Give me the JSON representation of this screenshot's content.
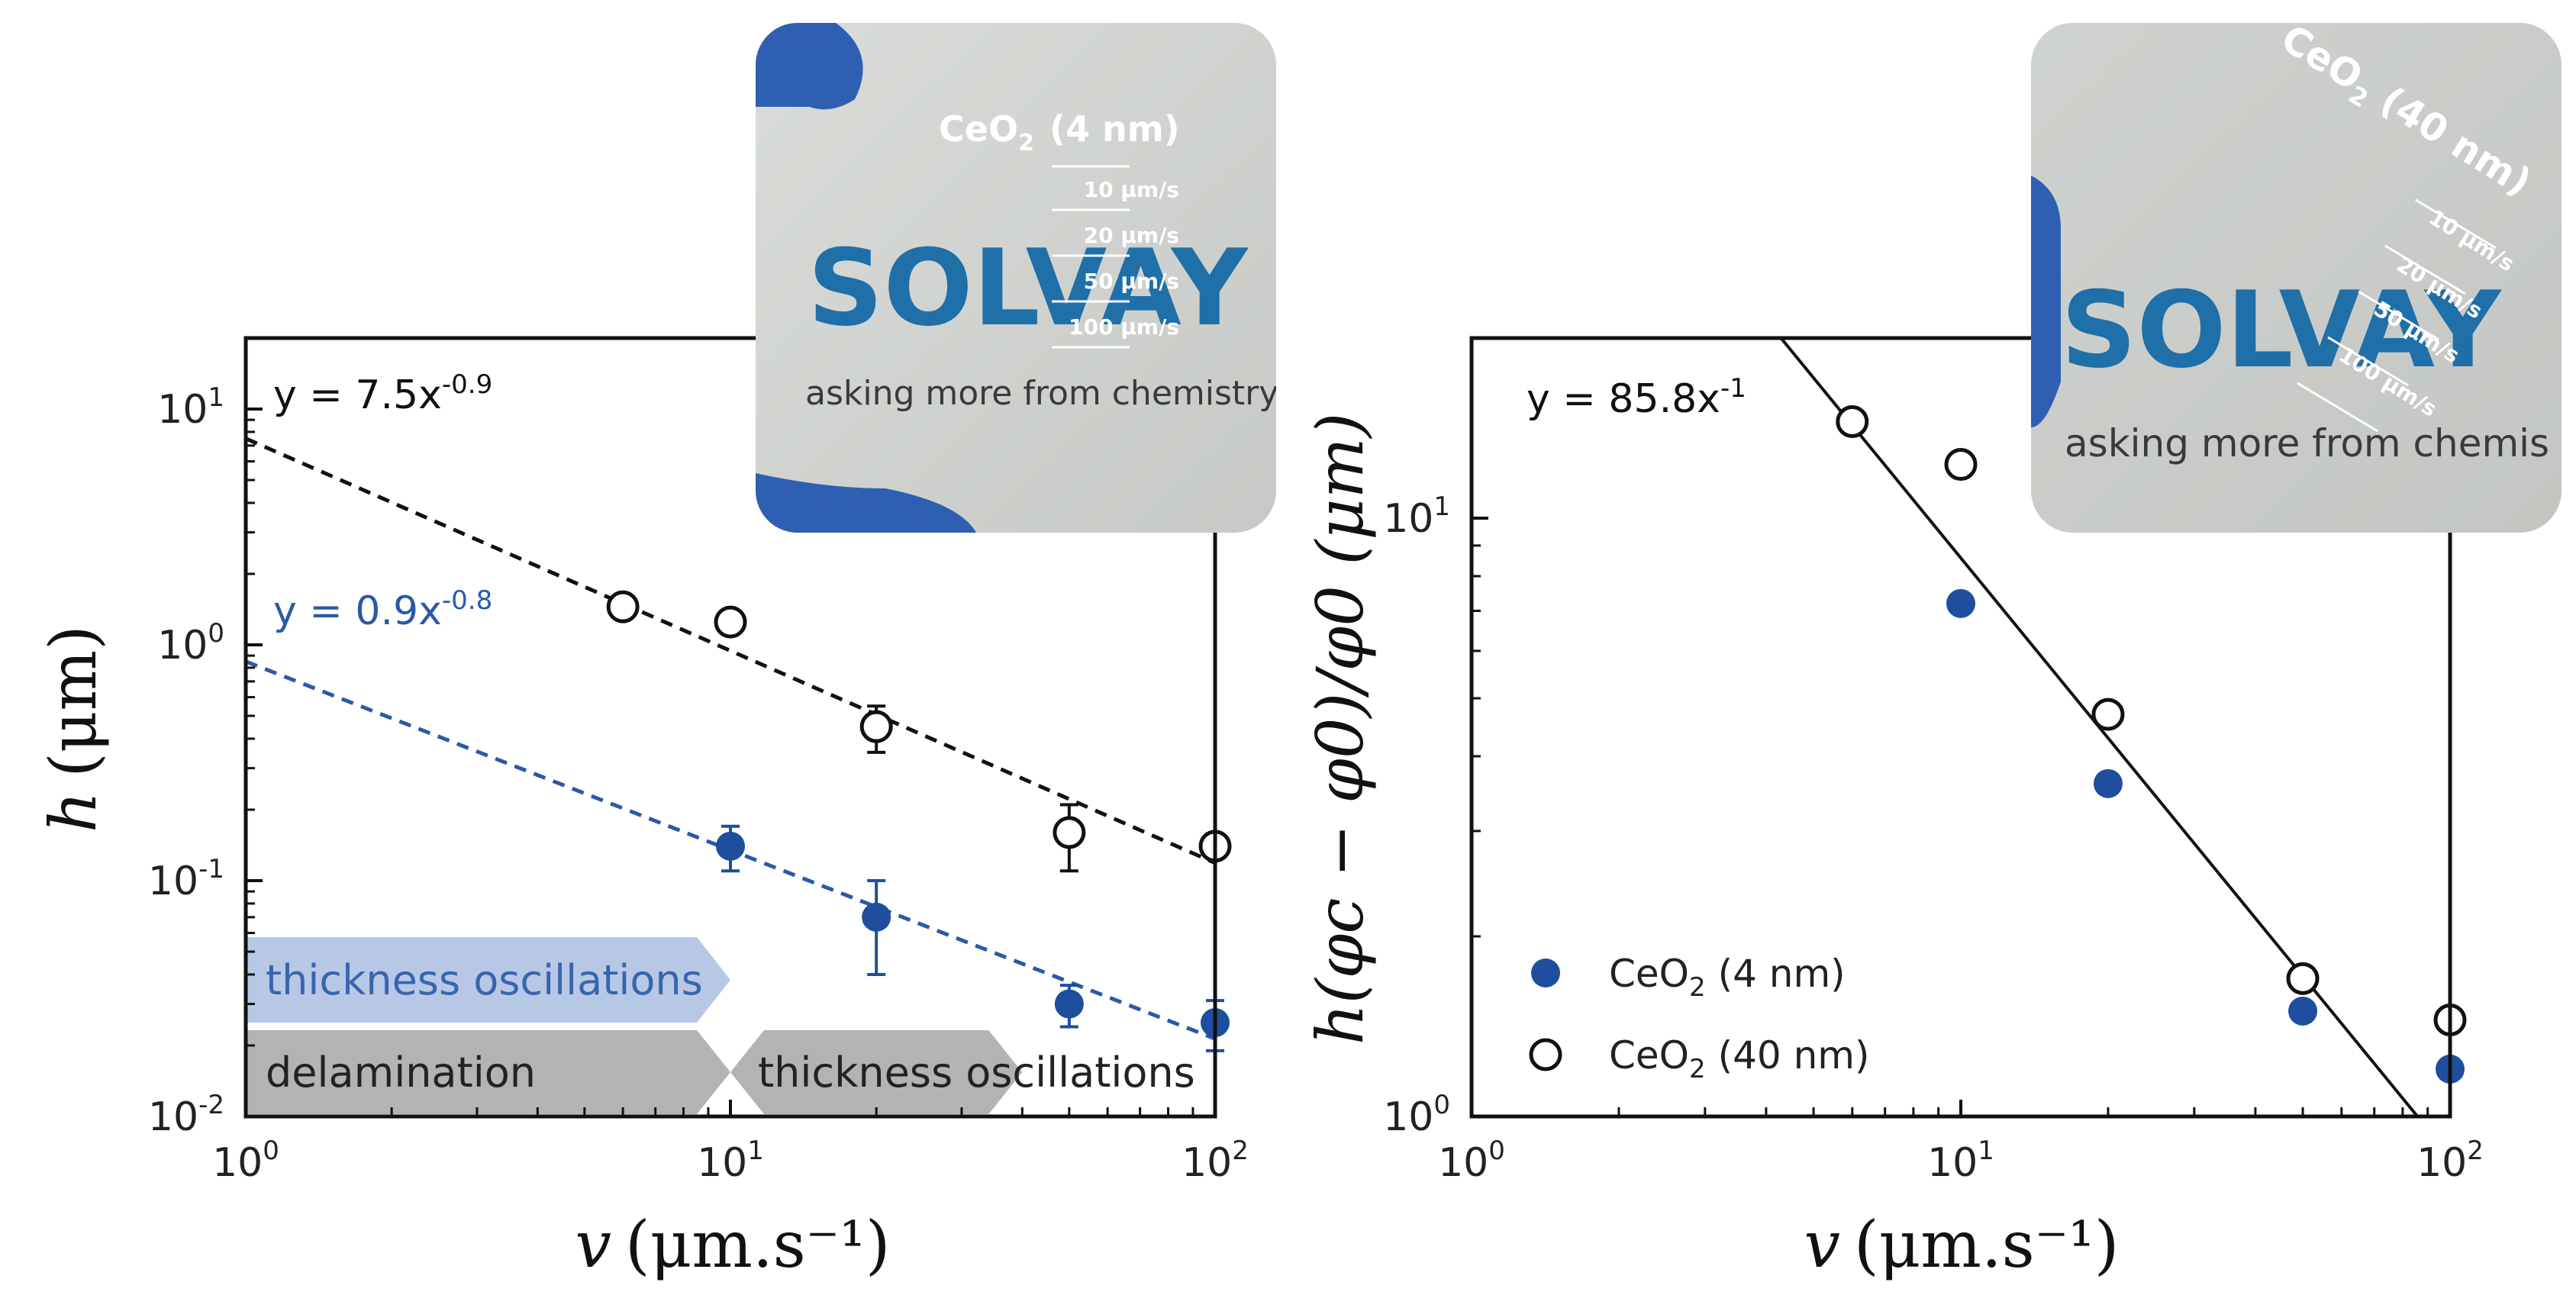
{
  "chart_data": [
    {
      "type": "scatter",
      "scale": "log-log",
      "xlabel_var": "v",
      "xlabel_unit": "(μm.s⁻¹)",
      "ylabel_var": "h",
      "ylabel_unit": "(μm)",
      "xlim": [
        1,
        100
      ],
      "ylim": [
        0.01,
        20
      ],
      "x_ticks": [
        {
          "base": "10",
          "exp": "0",
          "value": 1
        },
        {
          "base": "10",
          "exp": "1",
          "value": 10
        },
        {
          "base": "10",
          "exp": "2",
          "value": 100
        }
      ],
      "y_ticks": [
        {
          "base": "10",
          "exp": "-2",
          "value": 0.01
        },
        {
          "base": "10",
          "exp": "-1",
          "value": 0.1
        },
        {
          "base": "10",
          "exp": "0",
          "value": 1
        },
        {
          "base": "10",
          "exp": "1",
          "value": 10
        }
      ],
      "series": [
        {
          "name": "CeO2 (40 nm)",
          "marker": "open-circle",
          "color": "#111111",
          "x": [
            6,
            10,
            20,
            50,
            100
          ],
          "y": [
            1.45,
            1.25,
            0.45,
            0.16,
            0.14
          ],
          "err": [
            0,
            0,
            0.1,
            0.05,
            0
          ],
          "fit": {
            "label_prefix": "y = 7.5x",
            "label_exp": "-0.9",
            "a": 7.5,
            "b": -0.9,
            "color": "#111111"
          }
        },
        {
          "name": "CeO2 (4 nm)",
          "marker": "filled-circle",
          "color": "#1f4e9e",
          "x": [
            10,
            20,
            50,
            100
          ],
          "y": [
            0.14,
            0.07,
            0.03,
            0.025
          ],
          "err": [
            0.03,
            0.03,
            0.006,
            0.006
          ],
          "fit": {
            "label_prefix": "y = 0.9x",
            "label_exp": "-0.8",
            "a": 0.85,
            "b": -0.8,
            "color": "#2a5aa6"
          }
        }
      ],
      "bands": [
        {
          "label": "thickness oscillations",
          "x_start": 1,
          "x_end": 10,
          "row": "upper",
          "color": "#b7c8e6",
          "text_color": "#3a64ad"
        },
        {
          "label": "delamination",
          "x_start": 1,
          "x_end": 10,
          "row": "lower",
          "color": "#b3b3b3",
          "text_color": "#222222"
        },
        {
          "label": "thickness oscillations",
          "x_start": 10,
          "x_end": 40,
          "row": "lower",
          "color": "#b3b3b3",
          "text_color": "#222222"
        }
      ],
      "inset_photo": {
        "logo": "SOLVAY",
        "tagline": "asking more from chemistry®",
        "sample_label": "CeO",
        "sample_sub": "2",
        "sample_size": "(4 nm)",
        "speeds": [
          "10 μm/s",
          "20 μm/s",
          "50 μm/s",
          "100 μm/s"
        ]
      }
    },
    {
      "type": "scatter",
      "scale": "log-log",
      "xlabel_var": "v",
      "xlabel_unit": "(μm.s⁻¹)",
      "ylabel_text": "h(φc − φ0)/φ0 (μm)",
      "xlim": [
        1,
        100
      ],
      "ylim": [
        1,
        20
      ],
      "x_ticks": [
        {
          "base": "10",
          "exp": "0",
          "value": 1
        },
        {
          "base": "10",
          "exp": "1",
          "value": 10
        },
        {
          "base": "10",
          "exp": "2",
          "value": 100
        }
      ],
      "y_ticks": [
        {
          "base": "10",
          "exp": "0",
          "value": 1
        },
        {
          "base": "10",
          "exp": "1",
          "value": 10
        }
      ],
      "series": [
        {
          "name": "CeO2 (4 nm)",
          "legend_main": "CeO",
          "legend_sub": "2",
          "legend_rest": " (4 nm)",
          "marker": "filled-circle",
          "color": "#1f4e9e",
          "x": [
            10,
            20,
            50,
            100
          ],
          "y": [
            7.2,
            3.6,
            1.5,
            1.2
          ]
        },
        {
          "name": "CeO2 (40 nm)",
          "legend_main": "CeO",
          "legend_sub": "2",
          "legend_rest": " (40 nm)",
          "marker": "open-circle",
          "color": "#111111",
          "x": [
            6,
            10,
            20,
            50,
            100
          ],
          "y": [
            14.5,
            12.3,
            4.7,
            1.7,
            1.45
          ]
        }
      ],
      "fit": {
        "label_prefix": "y = 85.8x",
        "label_exp": "-1",
        "a": 85.8,
        "b": -1,
        "color": "#111111"
      },
      "inset_photo": {
        "logo": "SOLVAY",
        "tagline": "asking more from chemis",
        "sample_label": "CeO",
        "sample_sub": "2",
        "sample_size": "(40 nm)",
        "speeds": [
          "10 μm/s",
          "20 μm/s",
          "50 μm/s",
          "100 μm/s"
        ]
      }
    }
  ]
}
